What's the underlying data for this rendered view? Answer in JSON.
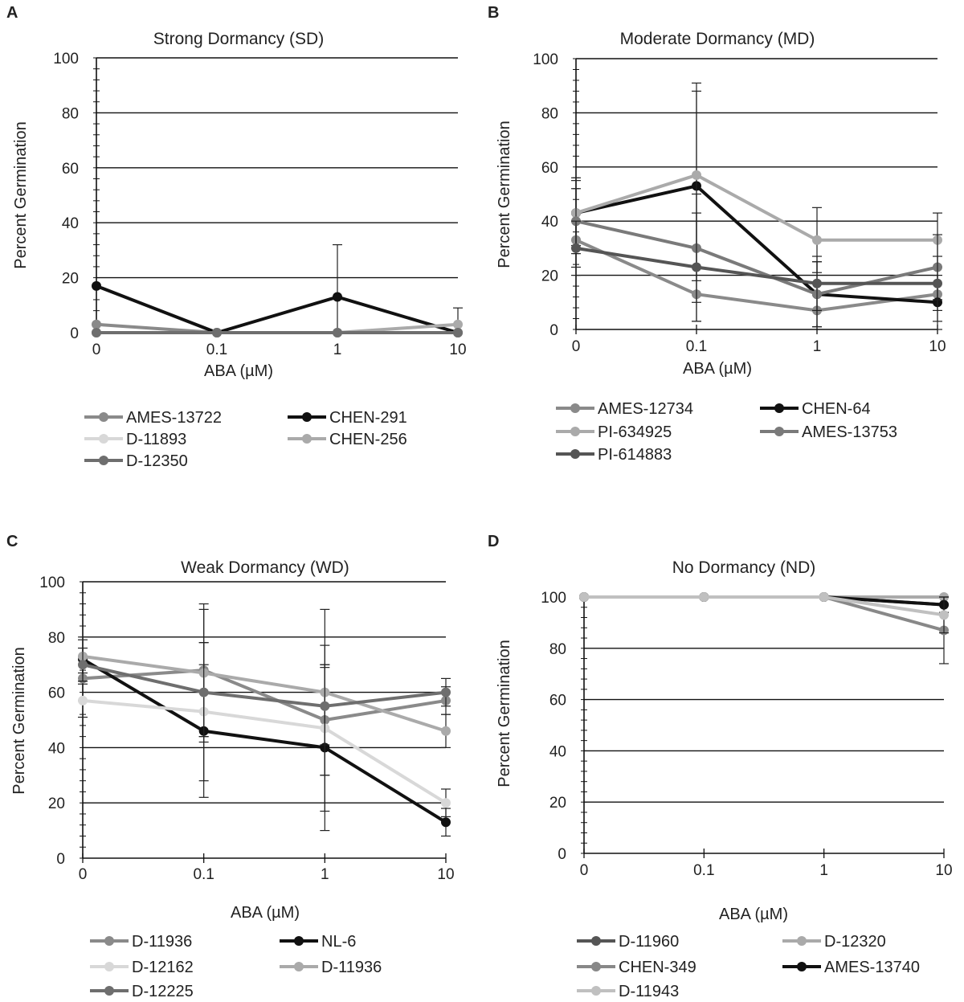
{
  "chart_data": [
    {
      "panel": "A",
      "type": "line",
      "title": "Strong Dormancy (SD)",
      "xlabel": "ABA (µM)",
      "ylabel": "Percent Germination",
      "categories": [
        "0",
        "0.1",
        "1",
        "10"
      ],
      "ylim": [
        0,
        100
      ],
      "yticks": [
        "0",
        "20",
        "40",
        "60",
        "80",
        "100"
      ],
      "series": [
        {
          "name": "AMES-13722",
          "color": "#8a8a8a",
          "values": [
            3,
            0,
            0,
            0
          ],
          "err": [
            0,
            0,
            0,
            0
          ]
        },
        {
          "name": "CHEN-291",
          "color": "#111111",
          "values": [
            17,
            0,
            13,
            0
          ],
          "err": [
            0,
            0,
            19,
            0
          ]
        },
        {
          "name": "D-11893",
          "color": "#d8d8d8",
          "values": [
            0,
            0,
            0,
            0
          ],
          "err": [
            0,
            0,
            0,
            0
          ]
        },
        {
          "name": "CHEN-256",
          "color": "#aaaaaa",
          "values": [
            0,
            0,
            0,
            3
          ],
          "err": [
            0,
            0,
            0,
            6
          ]
        },
        {
          "name": "D-12350",
          "color": "#6e6e6e",
          "values": [
            0,
            0,
            0,
            0
          ],
          "err": [
            0,
            0,
            0,
            0
          ]
        }
      ]
    },
    {
      "panel": "B",
      "type": "line",
      "title": "Moderate Dormancy (MD)",
      "xlabel": "ABA (µM)",
      "ylabel": "Percent Germination",
      "categories": [
        "0",
        "0.1",
        "1",
        "10"
      ],
      "ylim": [
        0,
        100
      ],
      "yticks": [
        "0",
        "20",
        "40",
        "60",
        "80",
        "100"
      ],
      "series": [
        {
          "name": "AMES-12734",
          "color": "#8a8a8a",
          "values": [
            33,
            13,
            7,
            13
          ],
          "err": [
            10,
            10,
            6,
            10
          ]
        },
        {
          "name": "CHEN-64",
          "color": "#111111",
          "values": [
            43,
            53,
            13,
            10
          ],
          "err": [
            13,
            35,
            12,
            10
          ]
        },
        {
          "name": "PI-634925",
          "color": "#aaaaaa",
          "values": [
            43,
            57,
            33,
            33
          ],
          "err": [
            12,
            34,
            12,
            10
          ]
        },
        {
          "name": "AMES-13753",
          "color": "#7a7a7a",
          "values": [
            40,
            30,
            13,
            23
          ],
          "err": [
            12,
            20,
            12,
            12
          ]
        },
        {
          "name": "PI-614883",
          "color": "#555555",
          "values": [
            30,
            23,
            17,
            17
          ],
          "err": [
            10,
            20,
            10,
            10
          ]
        }
      ]
    },
    {
      "panel": "C",
      "type": "line",
      "title": "Weak Dormancy (WD)",
      "xlabel": "ABA (µM)",
      "ylabel": "Percent Germination",
      "categories": [
        "0",
        "0.1",
        "1",
        "10"
      ],
      "ylim": [
        0,
        100
      ],
      "yticks": [
        "0",
        "20",
        "40",
        "60",
        "80",
        "100"
      ],
      "series": [
        {
          "name": "D-11936",
          "color": "#8a8a8a",
          "values": [
            65,
            68,
            50,
            57
          ],
          "err": [
            8,
            24,
            20,
            5
          ]
        },
        {
          "name": "NL-6",
          "color": "#111111",
          "values": [
            72,
            46,
            40,
            13
          ],
          "err": [
            8,
            24,
            30,
            5
          ]
        },
        {
          "name": "D-12162",
          "color": "#d8d8d8",
          "values": [
            57,
            53,
            47,
            20
          ],
          "err": [
            6,
            25,
            30,
            5
          ]
        },
        {
          "name": "D-11936",
          "color": "#aaaaaa",
          "values": [
            73,
            67,
            60,
            46
          ],
          "err": [
            6,
            23,
            30,
            6
          ]
        },
        {
          "name": "D-12225",
          "color": "#6e6e6e",
          "values": [
            70,
            60,
            55,
            60
          ],
          "err": [
            6,
            18,
            14,
            5
          ]
        }
      ]
    },
    {
      "panel": "D",
      "type": "line",
      "title": "No Dormancy (ND)",
      "xlabel": "ABA (µM)",
      "ylabel": "Percent Germination",
      "categories": [
        "0",
        "0.1",
        "1",
        "10"
      ],
      "ylim": [
        0,
        100
      ],
      "yticks": [
        "0",
        "20",
        "40",
        "60",
        "80",
        "100"
      ],
      "series": [
        {
          "name": "D-11960",
          "color": "#555555",
          "values": [
            100,
            100,
            100,
            97
          ],
          "err": [
            0,
            0,
            0,
            3
          ]
        },
        {
          "name": "D-12320",
          "color": "#aaaaaa",
          "values": [
            100,
            100,
            100,
            100
          ],
          "err": [
            0,
            0,
            0,
            0
          ]
        },
        {
          "name": "CHEN-349",
          "color": "#888888",
          "values": [
            100,
            100,
            100,
            87
          ],
          "err": [
            0,
            0,
            0,
            13
          ]
        },
        {
          "name": "AMES-13740",
          "color": "#111111",
          "values": [
            100,
            100,
            100,
            97
          ],
          "err": [
            0,
            0,
            0,
            3
          ]
        },
        {
          "name": "D-11943",
          "color": "#c0c0c0",
          "values": [
            100,
            100,
            100,
            93
          ],
          "err": [
            0,
            0,
            0,
            7
          ]
        }
      ]
    }
  ]
}
